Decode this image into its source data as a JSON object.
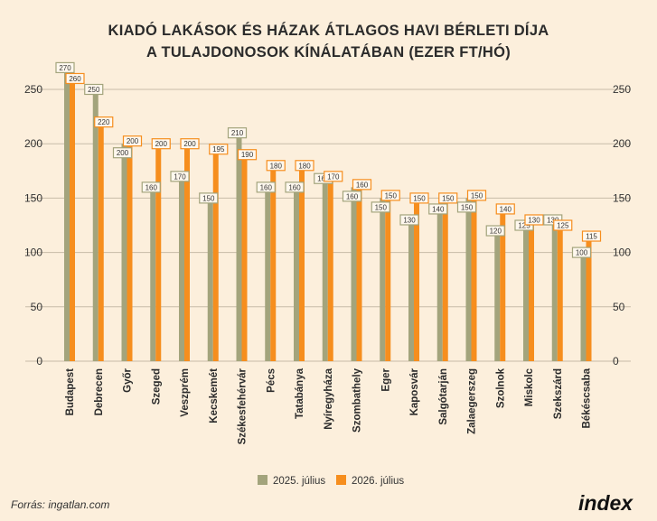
{
  "title_line1": "KIADÓ LAKÁSOK ÉS HÁZAK ÁTLAGOS HAVI BÉRLETI DÍJA",
  "title_line2": "A TULAJDONOSOK KÍNÁLATÁBAN (EZER FT/HÓ)",
  "source": "Forrás: ingatlan.com",
  "logo_text": "index",
  "colors": {
    "series1": "#a3a47c",
    "series2": "#f68e1e",
    "grid": "#c7bba8",
    "background": "#fcefdc"
  },
  "chart_data": {
    "type": "bar",
    "categories": [
      "Budapest",
      "Debrecen",
      "Győr",
      "Szeged",
      "Veszprém",
      "Kecskemét",
      "Székesfehérvár",
      "Pécs",
      "Tatabánya",
      "Nyíregyháza",
      "Szombathely",
      "Eger",
      "Kaposvár",
      "Salgótarján",
      "Zalaegerszeg",
      "Szolnok",
      "Miskolc",
      "Szekszárd",
      "Békéscsaba"
    ],
    "series": [
      {
        "name": "2025. július",
        "values": [
          270,
          250,
          200,
          160,
          170,
          150,
          210,
          160,
          160,
          168,
          160,
          150,
          130,
          140,
          150,
          120,
          125,
          130,
          100
        ]
      },
      {
        "name": "2026. július",
        "values": [
          260,
          220,
          200,
          200,
          200,
          195,
          190,
          180,
          180,
          170,
          160,
          150,
          150,
          150,
          150,
          140,
          130,
          125,
          115
        ]
      }
    ],
    "yticks": [
      0,
      50,
      100,
      150,
      200,
      250
    ],
    "ylim": [
      0,
      270
    ],
    "grid": true,
    "legend": "bottom"
  }
}
